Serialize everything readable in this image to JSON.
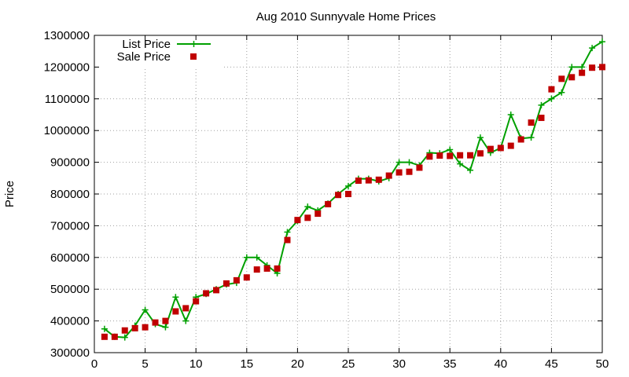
{
  "chart_data": {
    "type": "line",
    "title": "Aug 2010 Sunnyvale Home Prices",
    "xlabel": "",
    "ylabel": "Price",
    "xlim": [
      0,
      50
    ],
    "ylim": [
      300000,
      1300000
    ],
    "xticks": [
      0,
      5,
      10,
      15,
      20,
      25,
      30,
      35,
      40,
      45,
      50
    ],
    "yticks": [
      300000,
      400000,
      500000,
      600000,
      700000,
      800000,
      900000,
      1000000,
      1100000,
      1200000,
      1300000
    ],
    "grid": true,
    "legend_position": "top-left",
    "x": [
      1,
      2,
      3,
      4,
      5,
      6,
      7,
      8,
      9,
      10,
      11,
      12,
      13,
      14,
      15,
      16,
      17,
      18,
      19,
      20,
      21,
      22,
      23,
      24,
      25,
      26,
      27,
      28,
      29,
      30,
      31,
      32,
      33,
      34,
      35,
      36,
      37,
      38,
      39,
      40,
      41,
      42,
      43,
      44,
      45,
      46,
      47,
      48,
      49,
      50
    ],
    "series": [
      {
        "name": "List Price",
        "style": "line-points",
        "color": "#00a000",
        "values": [
          375000,
          350000,
          348000,
          385000,
          435000,
          390000,
          380000,
          475000,
          400000,
          475000,
          485000,
          500000,
          515000,
          520000,
          600000,
          600000,
          575000,
          550000,
          680000,
          715000,
          760000,
          748000,
          770000,
          800000,
          825000,
          848000,
          848000,
          840000,
          850000,
          900000,
          900000,
          890000,
          930000,
          928000,
          940000,
          895000,
          875000,
          978000,
          930000,
          945000,
          1050000,
          975000,
          978000,
          1080000,
          1100000,
          1120000,
          1200000,
          1200000,
          1260000,
          1280000
        ]
      },
      {
        "name": "Sale Price",
        "style": "points",
        "color": "#c00000",
        "values": [
          350000,
          350000,
          370000,
          377000,
          380000,
          395000,
          400000,
          430000,
          440000,
          462000,
          487000,
          497000,
          518000,
          528000,
          537000,
          562000,
          565000,
          565000,
          655000,
          718000,
          725000,
          738000,
          768000,
          797000,
          800000,
          842000,
          843000,
          845000,
          858000,
          868000,
          870000,
          883000,
          918000,
          921000,
          920000,
          922000,
          922000,
          928000,
          942000,
          945000,
          952000,
          972000,
          1025000,
          1040000,
          1130000,
          1163000,
          1168000,
          1182000,
          1198000,
          1200000
        ]
      }
    ]
  }
}
